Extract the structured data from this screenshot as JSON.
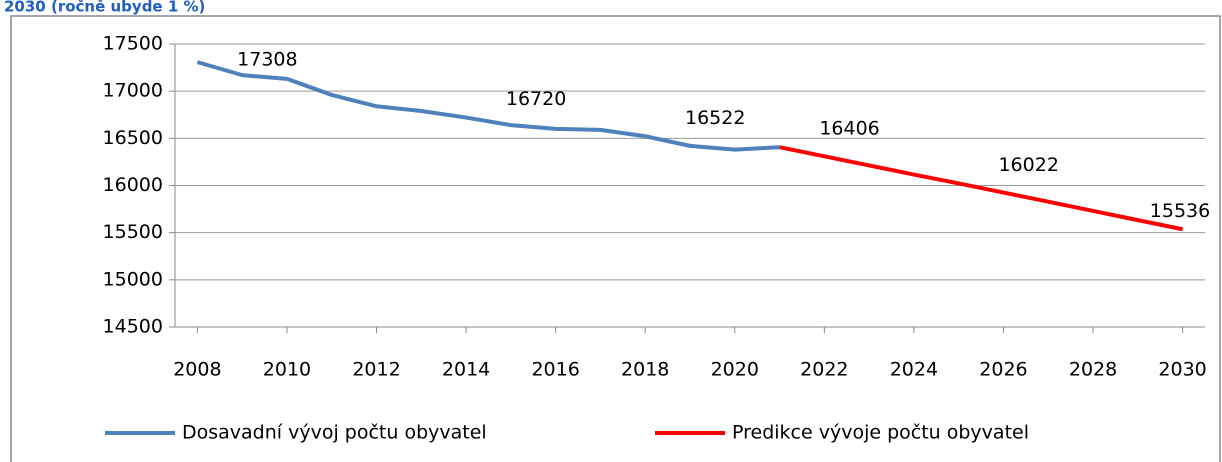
{
  "chart_data": {
    "type": "line",
    "title": "2030 (ročně ubyde 1 %)",
    "series": [
      {
        "name": "Dosavadní vývoj počtu obyvatel",
        "color": "#4f81bd",
        "x": [
          2008,
          2009,
          2010,
          2011,
          2012,
          2013,
          2014,
          2015,
          2016,
          2017,
          2018,
          2019,
          2020,
          2021
        ],
        "values": [
          17308,
          17170,
          17130,
          16960,
          16840,
          16790,
          16720,
          16640,
          16600,
          16590,
          16522,
          16420,
          16380,
          16406
        ],
        "labeled_points": [
          0,
          6,
          10
        ]
      },
      {
        "name": "Predikce vývoje počtu obyvatel",
        "color": "#ff0000",
        "x": [
          2021,
          2022,
          2023,
          2024,
          2025,
          2026,
          2027,
          2028,
          2029,
          2030
        ],
        "values": [
          16406,
          16309,
          16213,
          16116,
          16022,
          15925,
          15828,
          15730,
          15633,
          15536
        ],
        "labeled_points": [
          0,
          4,
          9
        ]
      }
    ],
    "xlim": [
      2007.5,
      2030.5
    ],
    "xticks": [
      2008,
      2010,
      2012,
      2014,
      2016,
      2018,
      2020,
      2022,
      2024,
      2026,
      2028,
      2030
    ],
    "ylim": [
      14500,
      17500
    ],
    "yticks": [
      14500,
      15000,
      15500,
      16000,
      16500,
      17000,
      17500
    ],
    "grid": true,
    "legend": "bottom"
  }
}
